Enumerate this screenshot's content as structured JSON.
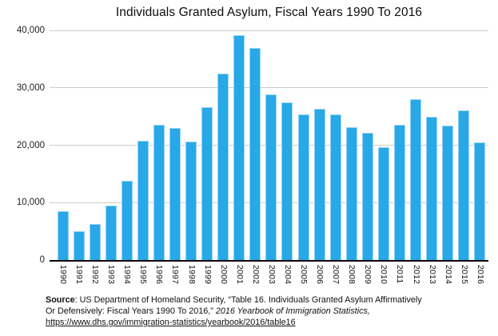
{
  "title": "Individuals Granted Asylum, Fiscal Years 1990 To 2016",
  "chart_data": {
    "type": "bar",
    "title": "Individuals Granted Asylum, Fiscal Years 1990 To 2016",
    "categories": [
      "1990",
      "1991",
      "1992",
      "1993",
      "1994",
      "1995",
      "1996",
      "1997",
      "1998",
      "1999",
      "2000",
      "2001",
      "2002",
      "2003",
      "2004",
      "2005",
      "2006",
      "2007",
      "2008",
      "2009",
      "2010",
      "2011",
      "2012",
      "2013",
      "2014",
      "2015",
      "2016"
    ],
    "values": [
      8500,
      5000,
      6300,
      9500,
      13800,
      20700,
      23500,
      23000,
      20600,
      26600,
      32500,
      39200,
      37000,
      28800,
      27400,
      25300,
      26300,
      25300,
      23100,
      22200,
      19700,
      23500,
      28000,
      25000,
      23400,
      26000,
      20500
    ],
    "xlabel": "",
    "ylabel": "",
    "ylim": [
      0,
      40000
    ],
    "yticks": [
      0,
      10000,
      20000,
      30000,
      40000
    ],
    "ytick_labels": [
      "0",
      "10,000",
      "20,000",
      "30,000",
      "40,000"
    ],
    "grid": true,
    "legend": false,
    "bar_color": "#29A8E8",
    "gridline_color": "#cccccc",
    "axis_color": "#000000"
  },
  "source": {
    "lines": [
      {
        "segments": [
          {
            "text": "Source",
            "style": "bold"
          },
          {
            "text": ": US Department of Homeland Security, “Table 16. Individuals Granted Asylum Affirmatively",
            "style": "normal"
          }
        ]
      },
      {
        "segments": [
          {
            "text": "Or Defensively: Fiscal Years 1990 To 2016,”  ",
            "style": "normal"
          },
          {
            "text": "2016 Yearbook of Immigration Statistics,",
            "style": "italic"
          }
        ]
      },
      {
        "segments": [
          {
            "text": "https://www.dhs.gov/immigration-statistics/yearbook/2016/table16",
            "style": "link"
          }
        ]
      }
    ]
  }
}
